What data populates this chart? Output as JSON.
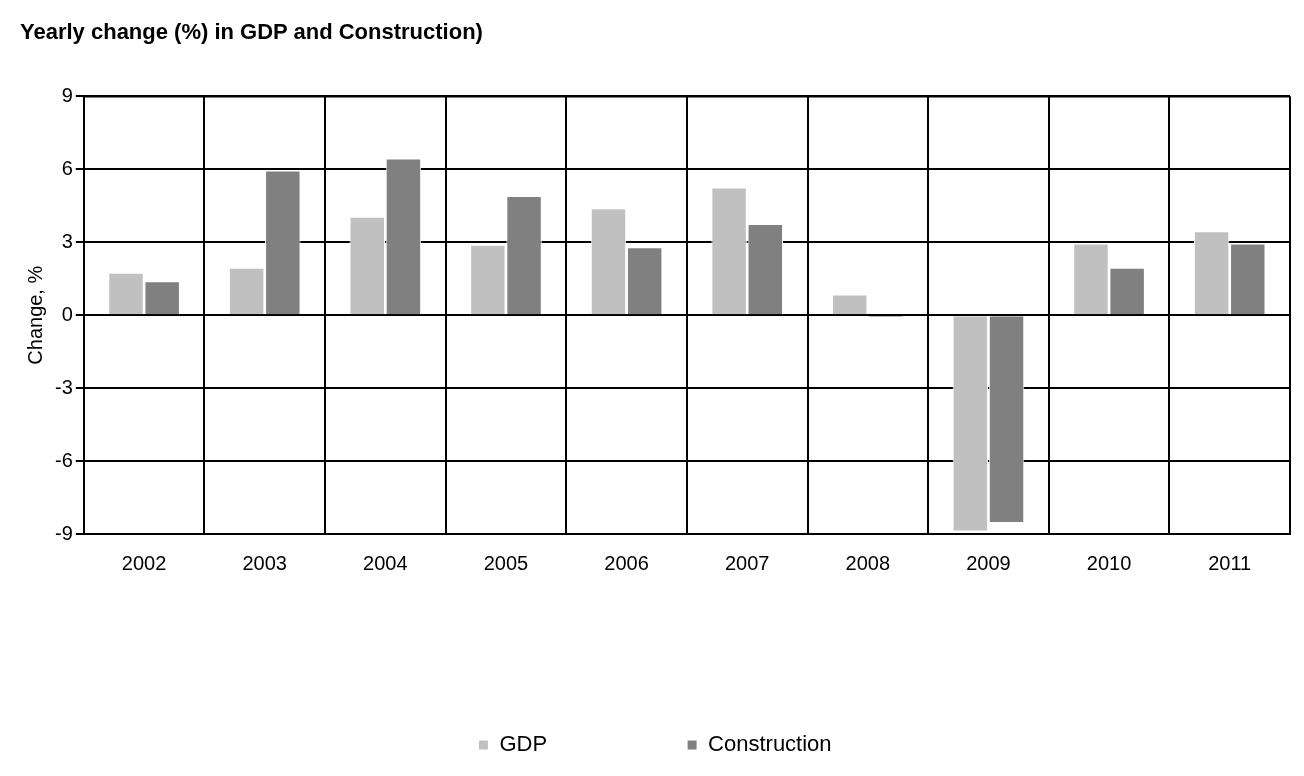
{
  "chart_data": {
    "type": "bar",
    "title": "Yearly change (%) in GDP and Construction)",
    "ylabel": "Change, %",
    "categories": [
      "2002",
      "2003",
      "2004",
      "2005",
      "2006",
      "2007",
      "2008",
      "2009",
      "2010",
      "2011"
    ],
    "series": [
      {
        "name": "GDP",
        "color": "#c0c0c0",
        "values": [
          1.75,
          1.95,
          4.05,
          2.9,
          4.4,
          5.25,
          0.85,
          -8.9,
          2.95,
          3.45
        ]
      },
      {
        "name": "Construction",
        "color": "#808080",
        "values": [
          1.4,
          5.95,
          6.45,
          4.9,
          2.8,
          3.75,
          -0.1,
          -8.55,
          1.95,
          2.95
        ]
      }
    ],
    "ylim": [
      -9,
      9
    ],
    "yticks": [
      -9,
      -6,
      -3,
      0,
      3,
      6,
      9
    ],
    "grid": true,
    "legend": "bottom"
  }
}
